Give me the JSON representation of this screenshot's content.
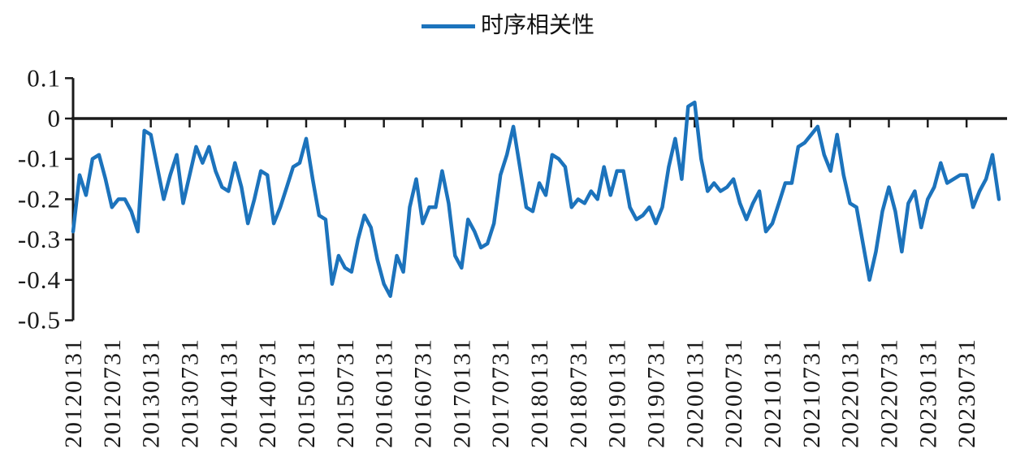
{
  "page": {
    "background": "#ffffff"
  },
  "chart_data": {
    "type": "line",
    "title": "时序相关性",
    "frequency": "monthly",
    "legend_position": "top-center",
    "grid": false,
    "line_color": "#1c73bc",
    "axis_color": "#1a1a1a",
    "ylim": [
      -0.5,
      0.1
    ],
    "yticks": [
      0.1,
      0,
      -0.1,
      -0.2,
      -0.3,
      -0.4,
      -0.5
    ],
    "x_tick_labels": [
      "20120131",
      "20120731",
      "20130131",
      "20130731",
      "20140131",
      "20140731",
      "20150131",
      "20150731",
      "20160131",
      "20160731",
      "20170131",
      "20170731",
      "20180131",
      "20180731",
      "20190131",
      "20190731",
      "20200131",
      "20200731",
      "20210131",
      "20210731",
      "20220131",
      "20220731",
      "20230131",
      "20230731"
    ],
    "points_per_tick": 6,
    "series": [
      {
        "name": "时序相关性",
        "start": "2012-01",
        "values": [
          -0.28,
          -0.14,
          -0.19,
          -0.1,
          -0.09,
          -0.15,
          -0.22,
          -0.2,
          -0.2,
          -0.23,
          -0.28,
          -0.03,
          -0.04,
          -0.12,
          -0.2,
          -0.14,
          -0.09,
          -0.21,
          -0.14,
          -0.07,
          -0.11,
          -0.07,
          -0.13,
          -0.17,
          -0.18,
          -0.11,
          -0.17,
          -0.26,
          -0.2,
          -0.13,
          -0.14,
          -0.26,
          -0.22,
          -0.17,
          -0.12,
          -0.11,
          -0.05,
          -0.15,
          -0.24,
          -0.25,
          -0.41,
          -0.34,
          -0.37,
          -0.38,
          -0.3,
          -0.24,
          -0.27,
          -0.35,
          -0.41,
          -0.44,
          -0.34,
          -0.38,
          -0.22,
          -0.15,
          -0.26,
          -0.22,
          -0.22,
          -0.13,
          -0.21,
          -0.34,
          -0.37,
          -0.25,
          -0.28,
          -0.32,
          -0.31,
          -0.26,
          -0.14,
          -0.09,
          -0.02,
          -0.12,
          -0.22,
          -0.23,
          -0.16,
          -0.19,
          -0.09,
          -0.1,
          -0.12,
          -0.22,
          -0.2,
          -0.21,
          -0.18,
          -0.2,
          -0.12,
          -0.19,
          -0.13,
          -0.13,
          -0.22,
          -0.25,
          -0.24,
          -0.22,
          -0.26,
          -0.22,
          -0.12,
          -0.05,
          -0.15,
          0.03,
          0.04,
          -0.1,
          -0.18,
          -0.16,
          -0.18,
          -0.17,
          -0.15,
          -0.21,
          -0.25,
          -0.21,
          -0.18,
          -0.28,
          -0.26,
          -0.21,
          -0.16,
          -0.16,
          -0.07,
          -0.06,
          -0.04,
          -0.02,
          -0.09,
          -0.13,
          -0.04,
          -0.14,
          -0.21,
          -0.22,
          -0.31,
          -0.4,
          -0.33,
          -0.23,
          -0.17,
          -0.23,
          -0.33,
          -0.21,
          -0.18,
          -0.27,
          -0.2,
          -0.17,
          -0.11,
          -0.16,
          -0.15,
          -0.14,
          -0.14,
          -0.22,
          -0.18,
          -0.15,
          -0.09,
          -0.2
        ]
      }
    ]
  }
}
